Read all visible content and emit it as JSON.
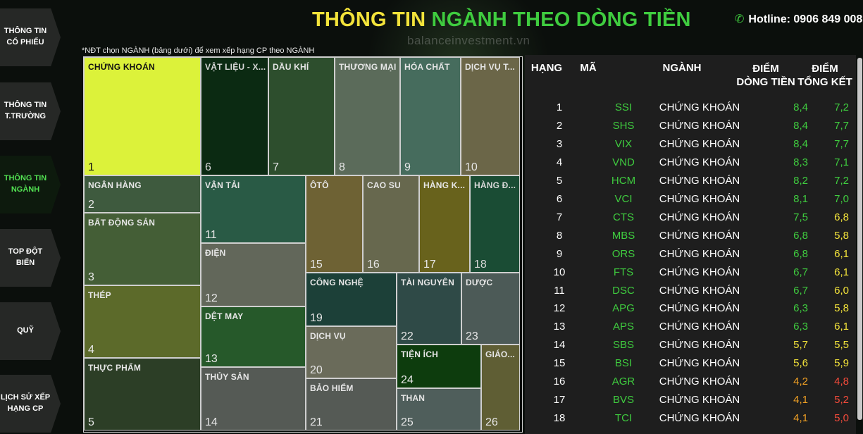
{
  "header": {
    "title_part1": "THÔNG TIN ",
    "title_part2": "NGÀNH THEO ",
    "title_part3": "DÒNG TIỀN",
    "hotline": "Hotline: 0906 849 008",
    "watermark": "balanceinvestment.vn",
    "note": "*NĐT chọn NGÀNH (bảng dưới) để xem xếp hạng CP theo NGÀNH"
  },
  "sidebar": {
    "items": [
      {
        "line1": "THÔNG TIN",
        "line2": "CỔ PHIẾU"
      },
      {
        "line1": "THÔNG TIN",
        "line2": "T.TRƯỜNG"
      },
      {
        "line1": "THÔNG TIN",
        "line2": "NGÀNH"
      },
      {
        "line1": "TOP ĐỘT",
        "line2": "BIẾN"
      },
      {
        "line1": "QUỸ",
        "line2": ""
      },
      {
        "line1": "LỊCH SỬ XẾP",
        "line2": "HẠNG CP"
      }
    ]
  },
  "treemap": {
    "tiles": [
      {
        "name": "CHỨNG KHOÁN",
        "rank": "1",
        "color": "#dcf23a",
        "text": "#111111"
      },
      {
        "name": "NGÂN HÀNG",
        "rank": "2",
        "color": "#3e5a3e",
        "text": "#e6e6e6"
      },
      {
        "name": "BẤT ĐỘNG SẢN",
        "rank": "3",
        "color": "#445e36",
        "text": "#e6e6e6"
      },
      {
        "name": "THÉP",
        "rank": "4",
        "color": "#5c6a2a",
        "text": "#e6e6e6"
      },
      {
        "name": "THỰC PHẨM",
        "rank": "5",
        "color": "#2c3e26",
        "text": "#e6e6e6"
      },
      {
        "name": "VẬT LIỆU - X...",
        "rank": "6",
        "color": "#0b2a12",
        "text": "#d8d8d8"
      },
      {
        "name": "DẦU KHÍ",
        "rank": "7",
        "color": "#2d4e2d",
        "text": "#e6e6e6"
      },
      {
        "name": "THƯƠNG MẠI",
        "rank": "8",
        "color": "#5b6b5a",
        "text": "#e6e6e6"
      },
      {
        "name": "HÓA CHẤT",
        "rank": "9",
        "color": "#466c5d",
        "text": "#e6e6e6"
      },
      {
        "name": "DỊCH VỤ T...",
        "rank": "10",
        "color": "#6b6648",
        "text": "#e6e6e6"
      },
      {
        "name": "VẬN TẢI",
        "rank": "11",
        "color": "#295a45",
        "text": "#e6e6e6"
      },
      {
        "name": "ĐIỆN",
        "rank": "12",
        "color": "#62675a",
        "text": "#e6e6e6"
      },
      {
        "name": "DỆT MAY",
        "rank": "13",
        "color": "#26592a",
        "text": "#e6e6e6"
      },
      {
        "name": "THỦY SẢN",
        "rank": "14",
        "color": "#555a55",
        "text": "#e6e6e6"
      },
      {
        "name": "ÔTÔ",
        "rank": "15",
        "color": "#6e6234",
        "text": "#e6e6e6"
      },
      {
        "name": "CAO SU",
        "rank": "16",
        "color": "#67684e",
        "text": "#e6e6e6"
      },
      {
        "name": "HÀNG K...",
        "rank": "17",
        "color": "#68621c",
        "text": "#e6e6e6"
      },
      {
        "name": "HÀNG Đ...",
        "rank": "18",
        "color": "#1a4c34",
        "text": "#d8d8d8"
      },
      {
        "name": "CÔNG NGHỆ",
        "rank": "19",
        "color": "#1c4038",
        "text": "#e6e6e6"
      },
      {
        "name": "DỊCH VỤ",
        "rank": "20",
        "color": "#6a6b5a",
        "text": "#e6e6e6"
      },
      {
        "name": "BẢO HIỂM",
        "rank": "21",
        "color": "#555a55",
        "text": "#e6e6e6"
      },
      {
        "name": "TÀI NGUYÊN",
        "rank": "22",
        "color": "#2f4a47",
        "text": "#e6e6e6"
      },
      {
        "name": "DƯỢC",
        "rank": "23",
        "color": "#4c5a57",
        "text": "#e6e6e6"
      },
      {
        "name": "TIỆN ÍCH",
        "rank": "24",
        "color": "#0d3c0d",
        "text": "#e6e6e6"
      },
      {
        "name": "THAN",
        "rank": "25",
        "color": "#4f5e5b",
        "text": "#e6e6e6"
      },
      {
        "name": "GIÁO...",
        "rank": "26",
        "color": "#5f5e34",
        "text": "#e6e6e6"
      }
    ]
  },
  "ranking": {
    "headers": {
      "rank": "HẠNG",
      "code": "MÃ",
      "industry": "NGÀNH",
      "flow_l1": "ĐIỂM",
      "flow_l2": "DÒNG TIỀN",
      "sum_l1": "ĐIỂM",
      "sum_l2": "TỔNG KẾT"
    },
    "colors": {
      "green": "#3fcc3f",
      "yellow": "#f3e33a",
      "orange": "#f0a024",
      "red": "#f24a3a"
    },
    "rows": [
      {
        "rank": "1",
        "code": "SSI",
        "industry": "CHỨNG KHOÁN",
        "flow": "8,4",
        "flow_c": "green",
        "sum": "7,2",
        "sum_c": "green"
      },
      {
        "rank": "2",
        "code": "SHS",
        "industry": "CHỨNG KHOÁN",
        "flow": "8,4",
        "flow_c": "green",
        "sum": "7,7",
        "sum_c": "green"
      },
      {
        "rank": "3",
        "code": "VIX",
        "industry": "CHỨNG KHOÁN",
        "flow": "8,4",
        "flow_c": "green",
        "sum": "7,7",
        "sum_c": "green"
      },
      {
        "rank": "4",
        "code": "VND",
        "industry": "CHỨNG KHOÁN",
        "flow": "8,3",
        "flow_c": "green",
        "sum": "7,1",
        "sum_c": "green"
      },
      {
        "rank": "5",
        "code": "HCM",
        "industry": "CHỨNG KHOÁN",
        "flow": "8,2",
        "flow_c": "green",
        "sum": "7,2",
        "sum_c": "green"
      },
      {
        "rank": "6",
        "code": "VCI",
        "industry": "CHỨNG KHOÁN",
        "flow": "8,1",
        "flow_c": "green",
        "sum": "7,0",
        "sum_c": "green"
      },
      {
        "rank": "7",
        "code": "CTS",
        "industry": "CHỨNG KHOÁN",
        "flow": "7,5",
        "flow_c": "green",
        "sum": "6,8",
        "sum_c": "yellow"
      },
      {
        "rank": "8",
        "code": "MBS",
        "industry": "CHỨNG KHOÁN",
        "flow": "6,8",
        "flow_c": "green",
        "sum": "5,8",
        "sum_c": "yellow"
      },
      {
        "rank": "9",
        "code": "ORS",
        "industry": "CHỨNG KHOÁN",
        "flow": "6,8",
        "flow_c": "green",
        "sum": "6,1",
        "sum_c": "yellow"
      },
      {
        "rank": "10",
        "code": "FTS",
        "industry": "CHỨNG KHOÁN",
        "flow": "6,7",
        "flow_c": "green",
        "sum": "6,1",
        "sum_c": "yellow"
      },
      {
        "rank": "11",
        "code": "DSC",
        "industry": "CHỨNG KHOÁN",
        "flow": "6,7",
        "flow_c": "green",
        "sum": "6,0",
        "sum_c": "yellow"
      },
      {
        "rank": "12",
        "code": "APG",
        "industry": "CHỨNG KHOÁN",
        "flow": "6,3",
        "flow_c": "green",
        "sum": "5,8",
        "sum_c": "yellow"
      },
      {
        "rank": "13",
        "code": "APS",
        "industry": "CHỨNG KHOÁN",
        "flow": "6,3",
        "flow_c": "green",
        "sum": "6,1",
        "sum_c": "yellow"
      },
      {
        "rank": "14",
        "code": "SBS",
        "industry": "CHỨNG KHOÁN",
        "flow": "5,7",
        "flow_c": "yellow",
        "sum": "5,5",
        "sum_c": "yellow"
      },
      {
        "rank": "15",
        "code": "BSI",
        "industry": "CHỨNG KHOÁN",
        "flow": "5,6",
        "flow_c": "yellow",
        "sum": "5,9",
        "sum_c": "yellow"
      },
      {
        "rank": "16",
        "code": "AGR",
        "industry": "CHỨNG KHOÁN",
        "flow": "4,2",
        "flow_c": "orange",
        "sum": "4,8",
        "sum_c": "red"
      },
      {
        "rank": "17",
        "code": "BVS",
        "industry": "CHỨNG KHOÁN",
        "flow": "4,1",
        "flow_c": "orange",
        "sum": "5,2",
        "sum_c": "red"
      },
      {
        "rank": "18",
        "code": "TCI",
        "industry": "CHỨNG KHOÁN",
        "flow": "4,1",
        "flow_c": "orange",
        "sum": "5,0",
        "sum_c": "red"
      }
    ]
  }
}
